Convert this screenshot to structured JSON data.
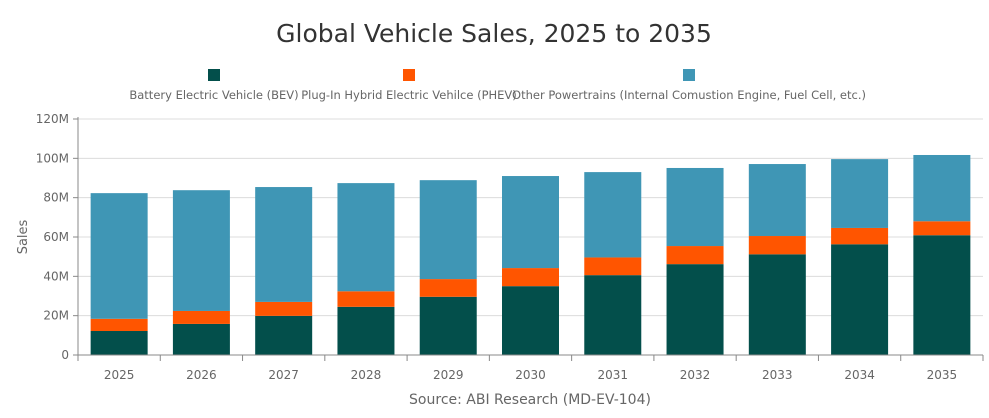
{
  "chart_data": {
    "type": "bar",
    "stacked": true,
    "title": "Global Vehicle Sales, 2025 to 2035",
    "ylabel": "Sales",
    "xlabel": "",
    "source": "Source: ABI Research (MD-EV-104)",
    "ylim": [
      0,
      120000000
    ],
    "yticks": [
      0,
      20000000,
      40000000,
      60000000,
      80000000,
      100000000,
      120000000
    ],
    "ytick_labels": [
      "0",
      "20M",
      "40M",
      "60M",
      "80M",
      "100M",
      "120M"
    ],
    "grid": true,
    "legend_position": "top",
    "categories": [
      "2025",
      "2026",
      "2027",
      "2028",
      "2029",
      "2030",
      "2031",
      "2032",
      "2033",
      "2034",
      "2035"
    ],
    "series": [
      {
        "name": "Battery Electric Vehicle (BEV)",
        "color": "#034f4b",
        "values": [
          12200000,
          15800000,
          19900000,
          24500000,
          29600000,
          35000000,
          40600000,
          46200000,
          51200000,
          56300000,
          60900000
        ]
      },
      {
        "name": "Plug-In Hybrid Electric Vehilce (PHEV)",
        "color": "#ff5500",
        "values": [
          6200000,
          6600000,
          7100000,
          7900000,
          9000000,
          9200000,
          9000000,
          9200000,
          9300000,
          8300000,
          7100000
        ]
      },
      {
        "name": "Other Powertrains (Internal Comustion Engine, Fuel Cell, etc.)",
        "color": "#3f96b5",
        "values": [
          63900000,
          61400000,
          58400000,
          55000000,
          50300000,
          46800000,
          43400000,
          39700000,
          36600000,
          35000000,
          33700000
        ]
      }
    ]
  }
}
